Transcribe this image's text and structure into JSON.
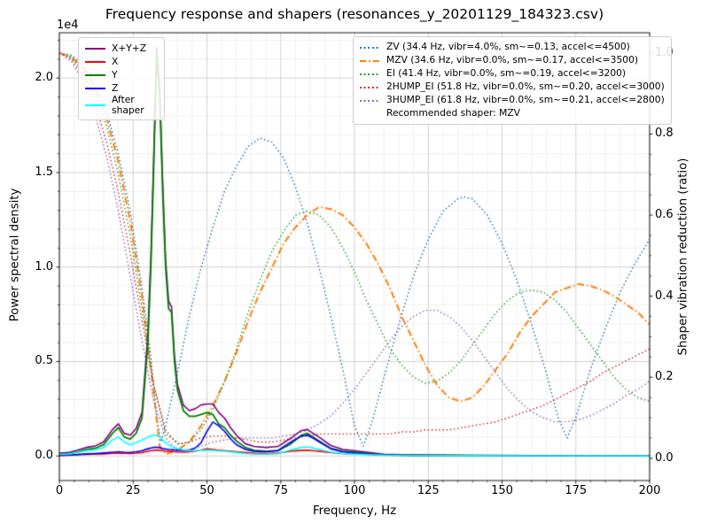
{
  "title": "Frequency response and shapers (resonances_y_20201129_184323.csv)",
  "chart_data": {
    "type": "line",
    "xlabel": "Frequency, Hz",
    "ylabel_left": "Power spectral density",
    "ylabel_right": "Shaper vibration reduction (ratio)",
    "offset_text": "1e4",
    "grid": "major and minor, light gray",
    "legend_positions": {
      "psd": "upper left",
      "shapers": "upper right"
    },
    "xlim": [
      0,
      200
    ],
    "ylim_left": [
      -1300,
      22400
    ],
    "ylim_right": [
      -0.055,
      1.05
    ],
    "xticks": {
      "values": [
        0,
        25,
        50,
        75,
        100,
        125,
        150,
        175,
        200
      ],
      "labels": [
        "0",
        "25",
        "50",
        "75",
        "100",
        "125",
        "150",
        "175",
        "200"
      ]
    },
    "yticks_left": {
      "values": [
        0,
        5000,
        10000,
        15000,
        20000
      ],
      "labels": [
        "0.0",
        "0.5",
        "1.0",
        "1.5",
        "2.0"
      ]
    },
    "yticks_right": {
      "values": [
        0,
        0.2,
        0.4,
        0.6,
        0.8,
        1.0
      ],
      "labels": [
        "0.0",
        "0.2",
        "0.4",
        "0.6",
        "0.8",
        "1.0"
      ]
    },
    "minor_x_step": 5,
    "minor_y_step": 1000,
    "psd_x": [
      0,
      3,
      6,
      9,
      12,
      15,
      18,
      20,
      22,
      24,
      26,
      28,
      30,
      31,
      32,
      33,
      34,
      35,
      36,
      37,
      38,
      39,
      40,
      42,
      44,
      46,
      48,
      50,
      52,
      54,
      56,
      58,
      60,
      63,
      66,
      70,
      74,
      78,
      82,
      84,
      86,
      88,
      92,
      96,
      100,
      105,
      110,
      120,
      140,
      160,
      180,
      200
    ],
    "psd_series": [
      {
        "id": "sum",
        "label": "X+Y+Z",
        "color": "#800080",
        "linestyle": "solid",
        "y": [
          150,
          180,
          300,
          450,
          520,
          750,
          1400,
          1700,
          1200,
          1100,
          1450,
          2300,
          6500,
          10500,
          16000,
          21600,
          19400,
          14500,
          10400,
          8200,
          7900,
          5300,
          3800,
          2700,
          2400,
          2500,
          2700,
          2750,
          2750,
          2300,
          2000,
          1500,
          1100,
          650,
          500,
          450,
          500,
          900,
          1350,
          1400,
          1200,
          1000,
          550,
          350,
          280,
          180,
          90,
          60,
          35,
          25,
          15,
          12
        ]
      },
      {
        "id": "x",
        "label": "X",
        "color": "#ff0000",
        "linestyle": "solid",
        "y": [
          30,
          40,
          60,
          80,
          90,
          110,
          140,
          150,
          140,
          130,
          150,
          180,
          250,
          280,
          300,
          320,
          300,
          280,
          260,
          250,
          240,
          220,
          210,
          200,
          220,
          260,
          320,
          380,
          350,
          300,
          280,
          250,
          220,
          180,
          150,
          130,
          150,
          250,
          300,
          310,
          280,
          250,
          180,
          130,
          110,
          80,
          50,
          30,
          20,
          15,
          10,
          8
        ]
      },
      {
        "id": "y",
        "label": "Y",
        "color": "#008000",
        "linestyle": "solid",
        "y": [
          100,
          120,
          200,
          350,
          400,
          600,
          1200,
          1500,
          1000,
          900,
          1200,
          2000,
          6000,
          10000,
          15500,
          21500,
          19000,
          14000,
          10000,
          7800,
          7600,
          5000,
          3500,
          2400,
          2100,
          2100,
          2200,
          2300,
          2200,
          1700,
          1500,
          1100,
          800,
          450,
          300,
          250,
          280,
          600,
          1100,
          1200,
          1000,
          800,
          400,
          250,
          200,
          120,
          60,
          40,
          25,
          15,
          10,
          10
        ]
      },
      {
        "id": "z",
        "label": "Z",
        "color": "#0000ff",
        "linestyle": "solid",
        "y": [
          40,
          50,
          80,
          110,
          130,
          160,
          200,
          220,
          200,
          190,
          220,
          280,
          380,
          420,
          450,
          470,
          440,
          400,
          370,
          350,
          340,
          320,
          310,
          300,
          320,
          420,
          700,
          1300,
          1800,
          1600,
          1300,
          900,
          600,
          350,
          250,
          220,
          280,
          700,
          1050,
          1100,
          950,
          750,
          380,
          220,
          160,
          100,
          60,
          35,
          25,
          15,
          10,
          8
        ]
      },
      {
        "id": "after_shaper",
        "label": "After shaper",
        "color": "#00ffff",
        "linestyle": "solid",
        "y": [
          80,
          100,
          180,
          280,
          320,
          450,
          850,
          1000,
          750,
          600,
          700,
          850,
          1000,
          1050,
          1100,
          1100,
          1000,
          850,
          700,
          600,
          500,
          440,
          400,
          330,
          300,
          290,
          300,
          310,
          300,
          270,
          250,
          220,
          180,
          130,
          100,
          90,
          120,
          300,
          450,
          480,
          420,
          350,
          200,
          130,
          100,
          70,
          40,
          25,
          15,
          10,
          8,
          8
        ]
      }
    ],
    "shaper_series": [
      {
        "id": "zv",
        "name": "ZV",
        "label": "ZV (34.4 Hz, vibr=4.0%, sm~=0.13, accel<=4500)",
        "color": "#1f77b4",
        "linestyle": "dotted",
        "x": [
          0,
          4,
          8,
          12,
          16,
          20,
          24,
          28,
          31,
          33,
          34.4,
          36,
          40,
          44,
          48,
          52,
          56,
          60,
          64,
          68,
          72,
          76,
          80,
          84,
          88,
          92,
          96,
          100,
          103,
          106,
          110,
          115,
          120,
          125,
          130,
          135,
          137,
          140,
          145,
          150,
          155,
          160,
          165,
          169,
          172,
          175,
          180,
          185,
          190,
          195,
          200
        ],
        "y": [
          1.0,
          0.995,
          0.97,
          0.925,
          0.855,
          0.75,
          0.61,
          0.42,
          0.25,
          0.1,
          0.04,
          0.08,
          0.21,
          0.35,
          0.47,
          0.57,
          0.66,
          0.72,
          0.77,
          0.79,
          0.78,
          0.74,
          0.67,
          0.58,
          0.47,
          0.35,
          0.22,
          0.08,
          0.03,
          0.09,
          0.2,
          0.33,
          0.45,
          0.54,
          0.61,
          0.64,
          0.645,
          0.64,
          0.6,
          0.53,
          0.44,
          0.33,
          0.21,
          0.1,
          0.05,
          0.1,
          0.22,
          0.32,
          0.41,
          0.48,
          0.54
        ]
      },
      {
        "id": "mzv",
        "name": "MZV",
        "label": "MZV (34.6 Hz, vibr=0.0%, sm~=0.17, accel<=3500)",
        "color": "#ff7f0e",
        "linestyle": "dashdot",
        "x": [
          0,
          4,
          8,
          12,
          16,
          20,
          24,
          28,
          31,
          34,
          36,
          40,
          44,
          48,
          52,
          56,
          60,
          64,
          68,
          72,
          76,
          80,
          84,
          88,
          92,
          96,
          100,
          104,
          108,
          112,
          116,
          120,
          124,
          128,
          132,
          136,
          140,
          144,
          148,
          152,
          156,
          160,
          164,
          168,
          172,
          176,
          180,
          184,
          188,
          192,
          196,
          200
        ],
        "y": [
          1.0,
          0.99,
          0.965,
          0.915,
          0.84,
          0.73,
          0.585,
          0.4,
          0.22,
          0.03,
          0.01,
          0.02,
          0.04,
          0.08,
          0.13,
          0.19,
          0.26,
          0.34,
          0.41,
          0.47,
          0.53,
          0.57,
          0.6,
          0.62,
          0.615,
          0.6,
          0.57,
          0.53,
          0.48,
          0.42,
          0.35,
          0.29,
          0.23,
          0.18,
          0.15,
          0.14,
          0.15,
          0.18,
          0.22,
          0.26,
          0.31,
          0.35,
          0.38,
          0.41,
          0.42,
          0.43,
          0.425,
          0.415,
          0.4,
          0.38,
          0.36,
          0.33
        ]
      },
      {
        "id": "ei",
        "name": "EI",
        "label": "EI (41.4 Hz, vibr=0.0%, sm~=0.19, accel<=3200)",
        "color": "#2ca02c",
        "linestyle": "dotted",
        "x": [
          0,
          4,
          8,
          12,
          16,
          20,
          24,
          28,
          32,
          36,
          41,
          44,
          48,
          52,
          56,
          60,
          64,
          68,
          72,
          76,
          80,
          84,
          88,
          92,
          96,
          100,
          104,
          108,
          112,
          116,
          120,
          124,
          128,
          132,
          136,
          140,
          144,
          148,
          152,
          156,
          160,
          164,
          168,
          172,
          176,
          180,
          184,
          188,
          192,
          196,
          200
        ],
        "y": [
          1.0,
          0.99,
          0.955,
          0.9,
          0.82,
          0.7,
          0.55,
          0.37,
          0.18,
          0.06,
          0.035,
          0.04,
          0.07,
          0.12,
          0.19,
          0.27,
          0.36,
          0.44,
          0.51,
          0.56,
          0.6,
          0.61,
          0.6,
          0.57,
          0.52,
          0.46,
          0.39,
          0.33,
          0.27,
          0.23,
          0.2,
          0.185,
          0.19,
          0.21,
          0.24,
          0.28,
          0.32,
          0.36,
          0.39,
          0.41,
          0.415,
          0.41,
          0.39,
          0.36,
          0.32,
          0.28,
          0.24,
          0.2,
          0.17,
          0.15,
          0.14
        ]
      },
      {
        "id": "2hump_ei",
        "name": "2HUMP_EI",
        "label": "2HUMP_EI (51.8 Hz, vibr=0.0%, sm~=0.20, accel<=3000)",
        "color": "#d62728",
        "linestyle": "dotted",
        "x": [
          0,
          4,
          8,
          12,
          16,
          20,
          24,
          28,
          32,
          36,
          40,
          44,
          48,
          52,
          56,
          60,
          64,
          68,
          72,
          76,
          80,
          84,
          88,
          92,
          96,
          100,
          104,
          108,
          112,
          116,
          120,
          124,
          128,
          132,
          136,
          140,
          144,
          148,
          152,
          156,
          160,
          164,
          168,
          172,
          176,
          180,
          184,
          188,
          192,
          196,
          200
        ],
        "y": [
          1.0,
          0.985,
          0.945,
          0.875,
          0.78,
          0.655,
          0.505,
          0.34,
          0.18,
          0.07,
          0.035,
          0.04,
          0.05,
          0.055,
          0.055,
          0.05,
          0.045,
          0.04,
          0.04,
          0.045,
          0.05,
          0.055,
          0.06,
          0.06,
          0.06,
          0.06,
          0.06,
          0.06,
          0.06,
          0.065,
          0.065,
          0.07,
          0.07,
          0.07,
          0.075,
          0.08,
          0.085,
          0.09,
          0.1,
          0.11,
          0.12,
          0.13,
          0.145,
          0.16,
          0.175,
          0.19,
          0.21,
          0.225,
          0.24,
          0.255,
          0.27
        ]
      },
      {
        "id": "3hump_ei",
        "name": "3HUMP_EI",
        "label": "3HUMP_EI (61.8 Hz, vibr=0.0%, sm~=0.21, accel<=2800)",
        "color": "#9467bd",
        "linestyle": "dotted",
        "x": [
          0,
          4,
          8,
          12,
          16,
          20,
          24,
          28,
          32,
          36,
          40,
          44,
          48,
          52,
          56,
          60,
          64,
          68,
          72,
          76,
          80,
          84,
          88,
          92,
          96,
          100,
          104,
          108,
          112,
          116,
          120,
          124,
          128,
          132,
          136,
          140,
          144,
          148,
          152,
          156,
          160,
          164,
          168,
          172,
          176,
          180,
          184,
          188,
          192,
          196,
          200
        ],
        "y": [
          1.0,
          0.98,
          0.93,
          0.85,
          0.745,
          0.61,
          0.45,
          0.29,
          0.14,
          0.05,
          0.02,
          0.02,
          0.03,
          0.04,
          0.045,
          0.05,
          0.05,
          0.05,
          0.05,
          0.055,
          0.06,
          0.07,
          0.085,
          0.105,
          0.135,
          0.17,
          0.21,
          0.25,
          0.29,
          0.325,
          0.35,
          0.365,
          0.365,
          0.35,
          0.325,
          0.29,
          0.25,
          0.21,
          0.17,
          0.14,
          0.115,
          0.1,
          0.09,
          0.09,
          0.095,
          0.105,
          0.12,
          0.135,
          0.155,
          0.17,
          0.19
        ]
      }
    ],
    "recommended_label": "Recommended shaper: MZV"
  }
}
